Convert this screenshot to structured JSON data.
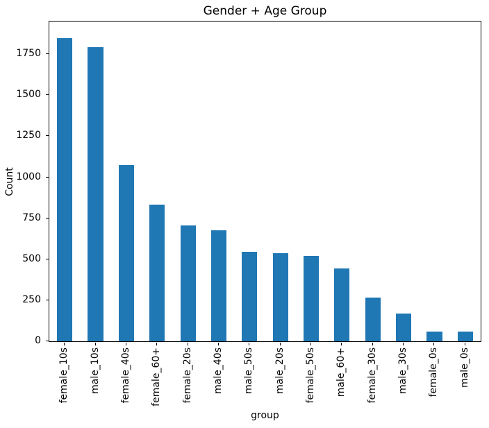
{
  "figure": {
    "background": "#ffffff",
    "spine_color": "#000000"
  },
  "chart_data": {
    "type": "bar",
    "title": "Gender + Age Group",
    "xlabel": "group",
    "ylabel": "Count",
    "categories": [
      "female_10s",
      "male_10s",
      "female_40s",
      "female_60+",
      "female_20s",
      "male_40s",
      "male_50s",
      "male_20s",
      "female_50s",
      "male_60+",
      "female_30s",
      "male_30s",
      "female_0s",
      "male_0s"
    ],
    "values": [
      1850,
      1795,
      1075,
      835,
      705,
      678,
      545,
      537,
      521,
      446,
      265,
      170,
      60,
      60
    ],
    "yticks": [
      0,
      250,
      500,
      750,
      1000,
      1250,
      1500,
      1750
    ],
    "ylim": [
      0,
      1950
    ],
    "bar_color": "#1f77b4",
    "bar_width_fraction": 0.5,
    "grid": false,
    "legend_position": "none",
    "x_tick_rotation_deg": 90
  }
}
